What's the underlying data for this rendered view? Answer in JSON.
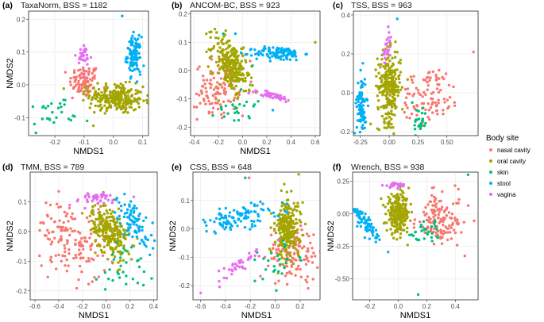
{
  "legend": {
    "title": "Body site",
    "entries": [
      {
        "label": "nasal cavity",
        "color": "#F8766D"
      },
      {
        "label": "oral cavity",
        "color": "#A3A500"
      },
      {
        "label": "skin",
        "color": "#00BF7D"
      },
      {
        "label": "stool",
        "color": "#00B0F6"
      },
      {
        "label": "vagina",
        "color": "#E76BF3"
      }
    ]
  },
  "chart_data": [
    {
      "type": "scatter",
      "panel_label": "(a)",
      "title": "TaxaNorm, BSS = 1182",
      "xlabel": "NMDS1",
      "ylabel": "NMDS2",
      "xlim": [
        -0.29,
        0.12
      ],
      "ylim": [
        -0.155,
        0.225
      ],
      "xticks": [
        {
          "v": -0.2,
          "label": "-0.2"
        },
        {
          "v": -0.1,
          "label": "-0.1"
        },
        {
          "v": 0.0,
          "label": "0.0"
        },
        {
          "v": 0.1,
          "label": "0.1"
        }
      ],
      "yticks": [
        {
          "v": -0.1,
          "label": "-0.1"
        },
        {
          "v": 0.0,
          "label": "0.0"
        },
        {
          "v": 0.1,
          "label": "0.1"
        },
        {
          "v": 0.2,
          "label": "0.2"
        }
      ],
      "clusters": [
        {
          "site": "nasal cavity",
          "n": 90,
          "cx": -0.1,
          "cy": 0.01,
          "sx": 0.025,
          "sy": 0.025,
          "rot": 0,
          "outliers": [
            [
              -0.14,
              -0.04
            ],
            [
              -0.06,
              0.05
            ]
          ]
        },
        {
          "site": "oral cavity",
          "n": 260,
          "cx": 0.01,
          "cy": -0.04,
          "sx": 0.045,
          "sy": 0.022,
          "rot": -0.1,
          "outliers": [
            [
              -0.1,
              -0.02
            ],
            [
              -0.08,
              -0.07
            ]
          ]
        },
        {
          "site": "skin",
          "n": 25,
          "cx": -0.21,
          "cy": -0.09,
          "sx": 0.04,
          "sy": 0.025,
          "rot": 0.2,
          "outliers": [
            [
              -0.09,
              -0.11
            ],
            [
              -0.27,
              -0.12
            ]
          ]
        },
        {
          "site": "stool",
          "n": 110,
          "cx": 0.07,
          "cy": 0.09,
          "sx": 0.012,
          "sy": 0.028,
          "rot": 0,
          "outliers": [
            [
              0.03,
              0.21
            ],
            [
              0.09,
              0.04
            ]
          ]
        },
        {
          "site": "vagina",
          "n": 30,
          "cx": -0.1,
          "cy": 0.08,
          "sx": 0.012,
          "sy": 0.02,
          "rot": 0,
          "outliers": [
            [
              -0.13,
              0.09
            ]
          ]
        }
      ]
    },
    {
      "type": "scatter",
      "panel_label": "(b)",
      "title": "ANCOM-BC, BSS = 923",
      "xlabel": "NMDS1",
      "ylabel": "",
      "xlim": [
        -0.43,
        0.64
      ],
      "ylim": [
        -0.23,
        0.21
      ],
      "xticks": [
        {
          "v": -0.4,
          "label": "-0.4"
        },
        {
          "v": -0.2,
          "label": "-0.2"
        },
        {
          "v": 0.0,
          "label": "0.0"
        },
        {
          "v": 0.2,
          "label": "0.2"
        },
        {
          "v": 0.4,
          "label": "0.4"
        },
        {
          "v": 0.6,
          "label": "0.6"
        }
      ],
      "yticks": [
        {
          "v": -0.2,
          "label": "-0.2"
        },
        {
          "v": -0.1,
          "label": "-0.1"
        },
        {
          "v": 0.0,
          "label": "0.0"
        },
        {
          "v": 0.1,
          "label": "0.1"
        },
        {
          "v": 0.2,
          "label": "0.2"
        }
      ],
      "clusters": [
        {
          "site": "nasal cavity",
          "n": 110,
          "cx": -0.2,
          "cy": -0.06,
          "sx": 0.09,
          "sy": 0.05,
          "rot": 0.1,
          "outliers": [
            [
              0.0,
              -0.16
            ]
          ]
        },
        {
          "site": "oral cavity",
          "n": 260,
          "cx": -0.1,
          "cy": 0.02,
          "sx": 0.08,
          "sy": 0.04,
          "rot": -0.4,
          "outliers": [
            [
              0.6,
              0.1
            ],
            [
              -0.3,
              0.13
            ]
          ]
        },
        {
          "site": "skin",
          "n": 25,
          "cx": -0.05,
          "cy": -0.12,
          "sx": 0.08,
          "sy": 0.04,
          "rot": 0,
          "outliers": [
            [
              -0.16,
              0.13
            ]
          ]
        },
        {
          "site": "stool",
          "n": 110,
          "cx": 0.3,
          "cy": 0.06,
          "sx": 0.1,
          "sy": 0.012,
          "rot": 0,
          "outliers": [
            [
              -0.06,
              0.13
            ],
            [
              0.25,
              -0.14
            ]
          ]
        },
        {
          "site": "vagina",
          "n": 40,
          "cx": 0.25,
          "cy": -0.09,
          "sx": 0.1,
          "sy": 0.006,
          "rot": -0.1,
          "outliers": [
            [
              0.05,
              -0.08
            ]
          ]
        }
      ]
    },
    {
      "type": "scatter",
      "panel_label": "(c)",
      "title": "TSS, BSS = 963",
      "xlabel": "",
      "ylabel": "",
      "xlim": [
        -0.31,
        0.77
      ],
      "ylim": [
        -0.22,
        0.42
      ],
      "xticks": [
        {
          "v": -0.25,
          "label": "-0.25"
        },
        {
          "v": 0.0,
          "label": "0.00"
        },
        {
          "v": 0.25,
          "label": "0.25"
        },
        {
          "v": 0.5,
          "label": "0.50"
        }
      ],
      "yticks": [
        {
          "v": -0.2,
          "label": "-0.2"
        },
        {
          "v": 0.0,
          "label": "0.0"
        },
        {
          "v": 0.2,
          "label": "0.2"
        },
        {
          "v": 0.4,
          "label": "0.4"
        }
      ],
      "clusters": [
        {
          "site": "nasal cavity",
          "n": 100,
          "cx": 0.35,
          "cy": -0.01,
          "sx": 0.13,
          "sy": 0.07,
          "rot": 0.1,
          "outliers": [
            [
              0.73,
              0.21
            ]
          ]
        },
        {
          "site": "oral cavity",
          "n": 260,
          "cx": 0.0,
          "cy": 0.03,
          "sx": 0.05,
          "sy": 0.09,
          "rot": 0,
          "outliers": [
            [
              0.05,
              0.21
            ]
          ]
        },
        {
          "site": "skin",
          "n": 25,
          "cx": 0.27,
          "cy": -0.15,
          "sx": 0.03,
          "sy": 0.04,
          "rot": 0,
          "outliers": [
            [
              0.2,
              -0.05
            ]
          ]
        },
        {
          "site": "stool",
          "n": 90,
          "cx": -0.24,
          "cy": -0.06,
          "sx": 0.02,
          "sy": 0.08,
          "rot": 0,
          "outliers": [
            [
              0.07,
              0.38
            ]
          ]
        },
        {
          "site": "vagina",
          "n": 25,
          "cx": -0.02,
          "cy": 0.22,
          "sx": 0.02,
          "sy": 0.05,
          "rot": 0,
          "outliers": []
        }
      ]
    },
    {
      "type": "scatter",
      "panel_label": "(d)",
      "title": "TMM, BSS = 789",
      "xlabel": "NMDS1",
      "ylabel": "NMDS2",
      "xlim": [
        -0.64,
        0.43
      ],
      "ylim": [
        -0.23,
        0.2
      ],
      "xticks": [
        {
          "v": -0.6,
          "label": "-0.6"
        },
        {
          "v": -0.4,
          "label": "-0.4"
        },
        {
          "v": -0.2,
          "label": "-0.2"
        },
        {
          "v": 0.0,
          "label": "0.0"
        },
        {
          "v": 0.2,
          "label": "0.2"
        },
        {
          "v": 0.4,
          "label": "0.4"
        }
      ],
      "yticks": [
        {
          "v": -0.2,
          "label": "-0.2"
        },
        {
          "v": -0.1,
          "label": "-0.1"
        },
        {
          "v": 0.0,
          "label": "0.0"
        },
        {
          "v": 0.1,
          "label": "0.1"
        }
      ],
      "clusters": [
        {
          "site": "nasal cavity",
          "n": 140,
          "cx": -0.3,
          "cy": -0.03,
          "sx": 0.14,
          "sy": 0.06,
          "rot": -0.2,
          "outliers": []
        },
        {
          "site": "oral cavity",
          "n": 250,
          "cx": 0.03,
          "cy": 0.0,
          "sx": 0.08,
          "sy": 0.04,
          "rot": -0.3,
          "outliers": []
        },
        {
          "site": "skin",
          "n": 30,
          "cx": 0.15,
          "cy": -0.12,
          "sx": 0.1,
          "sy": 0.05,
          "rot": 0,
          "outliers": []
        },
        {
          "site": "stool",
          "n": 90,
          "cx": 0.24,
          "cy": 0.03,
          "sx": 0.09,
          "sy": 0.03,
          "rot": -0.4,
          "outliers": []
        },
        {
          "site": "vagina",
          "n": 40,
          "cx": -0.1,
          "cy": 0.11,
          "sx": 0.12,
          "sy": 0.012,
          "rot": 0,
          "outliers": []
        }
      ]
    },
    {
      "type": "scatter",
      "panel_label": "(e)",
      "title": "CSS, BSS = 648",
      "xlabel": "NMDS1",
      "ylabel": "NMDS2",
      "xlim": [
        -0.66,
        0.36
      ],
      "ylim": [
        -0.25,
        0.2
      ],
      "xticks": [
        {
          "v": -0.6,
          "label": "-0.6"
        },
        {
          "v": -0.4,
          "label": "-0.4"
        },
        {
          "v": -0.2,
          "label": "-0.2"
        },
        {
          "v": 0.0,
          "label": "0.0"
        },
        {
          "v": 0.2,
          "label": "0.2"
        }
      ],
      "yticks": [
        {
          "v": -0.2,
          "label": "-0.2"
        },
        {
          "v": -0.1,
          "label": "-0.1"
        },
        {
          "v": 0.0,
          "label": "0.0"
        },
        {
          "v": 0.1,
          "label": "0.1"
        }
      ],
      "clusters": [
        {
          "site": "nasal cavity",
          "n": 130,
          "cx": 0.15,
          "cy": -0.08,
          "sx": 0.1,
          "sy": 0.05,
          "rot": 0,
          "outliers": [
            [
              -0.21,
              0.18
            ]
          ]
        },
        {
          "site": "oral cavity",
          "n": 250,
          "cx": 0.1,
          "cy": 0.0,
          "sx": 0.05,
          "sy": 0.05,
          "rot": 0.6,
          "outliers": []
        },
        {
          "site": "skin",
          "n": 25,
          "cx": 0.0,
          "cy": -0.12,
          "sx": 0.12,
          "sy": 0.04,
          "rot": 0,
          "outliers": [
            [
              -0.24,
              0.18
            ]
          ]
        },
        {
          "site": "stool",
          "n": 110,
          "cx": -0.3,
          "cy": 0.04,
          "sx": 0.18,
          "sy": 0.02,
          "rot": 0.08,
          "outliers": []
        },
        {
          "site": "vagina",
          "n": 40,
          "cx": -0.3,
          "cy": -0.13,
          "sx": 0.15,
          "sy": 0.015,
          "rot": 0.3,
          "outliers": []
        }
      ]
    },
    {
      "type": "scatter",
      "panel_label": "(f)",
      "title": "Wrench, BSS = 938",
      "xlabel": "NMDS1",
      "ylabel": "NMDS2",
      "xlim": [
        -0.32,
        0.56
      ],
      "ylim": [
        -0.66,
        0.32
      ],
      "xticks": [
        {
          "v": -0.2,
          "label": "-0.2"
        },
        {
          "v": 0.0,
          "label": "0.0"
        },
        {
          "v": 0.2,
          "label": "0.2"
        },
        {
          "v": 0.4,
          "label": "0.4"
        }
      ],
      "yticks": [
        {
          "v": -0.5,
          "label": "-0.50"
        },
        {
          "v": -0.25,
          "label": "-0.25"
        },
        {
          "v": 0.0,
          "label": "0.00"
        },
        {
          "v": 0.25,
          "label": "0.25"
        }
      ],
      "clusters": [
        {
          "site": "nasal cavity",
          "n": 130,
          "cx": 0.3,
          "cy": -0.05,
          "sx": 0.09,
          "sy": 0.1,
          "rot": 0.3,
          "outliers": []
        },
        {
          "site": "oral cavity",
          "n": 250,
          "cx": 0.0,
          "cy": 0.0,
          "sx": 0.04,
          "sy": 0.07,
          "rot": 0,
          "outliers": []
        },
        {
          "site": "skin",
          "n": 30,
          "cx": 0.2,
          "cy": -0.15,
          "sx": 0.06,
          "sy": 0.05,
          "rot": 0,
          "outliers": [
            [
              0.14,
              -0.62
            ],
            [
              0.49,
              0.3
            ]
          ]
        },
        {
          "site": "stool",
          "n": 80,
          "cx": -0.23,
          "cy": -0.07,
          "sx": 0.025,
          "sy": 0.08,
          "rot": 0.6,
          "outliers": []
        },
        {
          "site": "vagina",
          "n": 30,
          "cx": -0.02,
          "cy": 0.22,
          "sx": 0.04,
          "sy": 0.01,
          "rot": 0,
          "outliers": []
        }
      ]
    }
  ]
}
